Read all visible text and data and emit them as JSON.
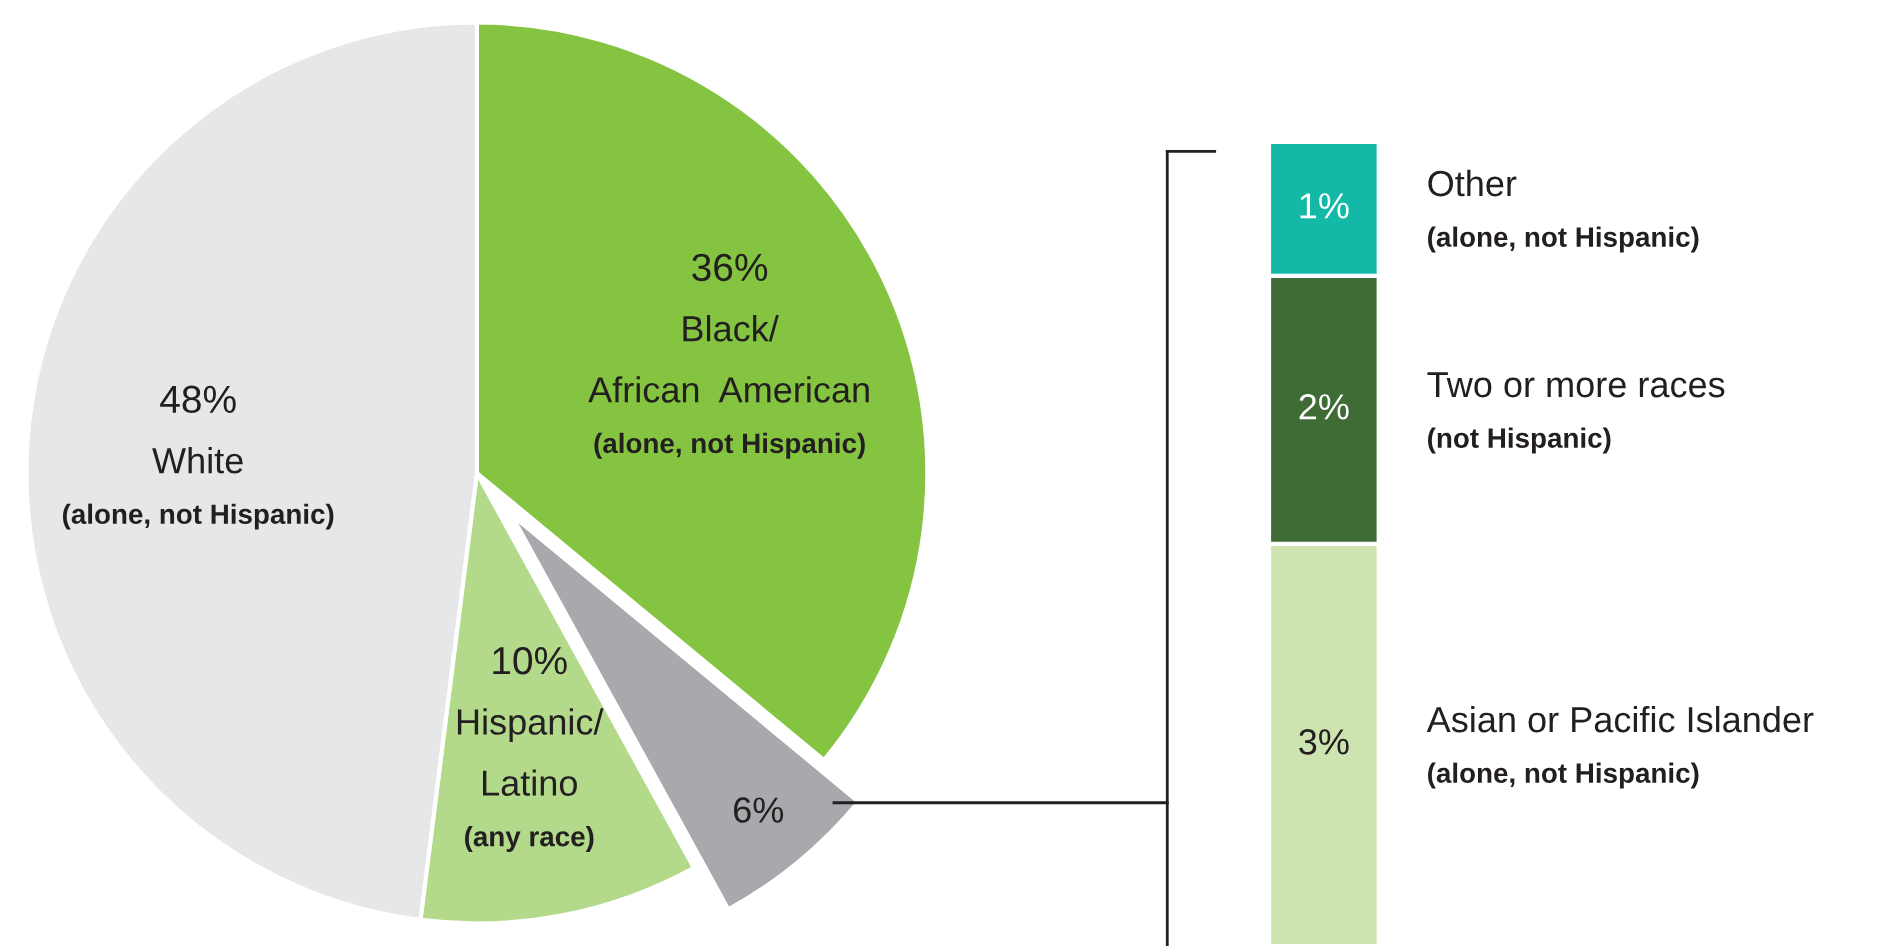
{
  "chart_data": [
    {
      "type": "pie",
      "categories": [
        "Black/\nAfrican  American\n(alone, not Hispanic)",
        null,
        "Hispanic/\nLatino\n(any race)",
        "White\n(alone, not Hispanic)"
      ],
      "values": [
        36,
        6,
        10,
        48
      ],
      "colors": [
        "#84c441",
        "#a7a9ac",
        "#b3d98a",
        "#e6e7e8"
      ],
      "value_labels": [
        "36%",
        "6%",
        "10%",
        "48%"
      ]
    },
    {
      "type": "bar",
      "stacked": true,
      "categories": [
        null
      ],
      "series": [
        {
          "name": "Asian or Pacific Islander\n(alone, not Hispanic)",
          "color": "#cde4b0",
          "values": [
            3
          ],
          "value_labels": [
            "3%"
          ]
        },
        {
          "name": "Two or more races\n(not Hispanic)",
          "color": "#3f6b34",
          "values": [
            2
          ],
          "value_labels": [
            "2%"
          ]
        },
        {
          "name": "Other\n(alone, not Hispanic)",
          "color": "#14b8a6",
          "values": [
            1
          ],
          "value_labels": [
            "1%"
          ]
        }
      ]
    }
  ]
}
